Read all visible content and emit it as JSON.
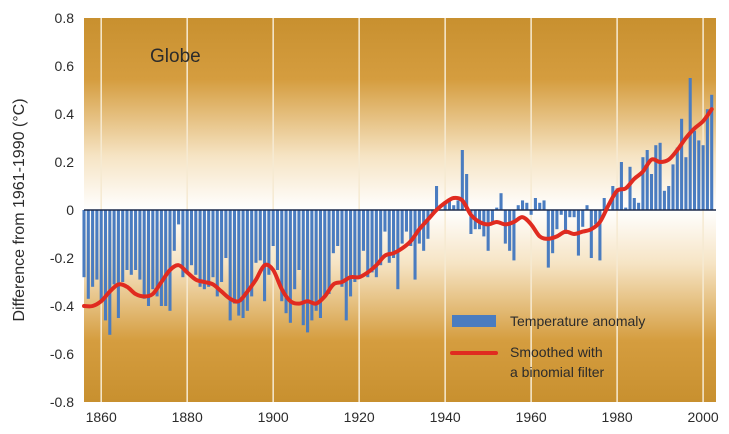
{
  "chart_data": {
    "type": "bar",
    "panel_label": "Globe",
    "ylabel": "Difference from 1961-1990 (°C)",
    "xlabel": "",
    "xlim": [
      1856,
      2003
    ],
    "ylim": [
      -0.8,
      0.8
    ],
    "xticks": [
      1860,
      1880,
      1900,
      1920,
      1940,
      1960,
      1980,
      2000
    ],
    "yticks": [
      0.8,
      0.6,
      0.4,
      0.2,
      0,
      -0.2,
      -0.4,
      -0.6,
      -0.8
    ],
    "ytick_labels": [
      "0.8",
      "0.6",
      "0.4",
      "0.2",
      "0",
      "-0.2",
      "-0.4",
      "-0.6",
      "-0.8"
    ],
    "grid": "vertical lines at x ticks",
    "legend_position": "bottom-right",
    "colors": {
      "bars": "#4a7cc0",
      "smoothed": "#e02b20",
      "bg_warm": "#c98f2e",
      "bg_center": "#ffffff",
      "grid": "#f6ead2"
    },
    "series": [
      {
        "name": "Temperature anomaly",
        "kind": "bar",
        "x": [
          1856,
          1857,
          1858,
          1859,
          1860,
          1861,
          1862,
          1863,
          1864,
          1865,
          1866,
          1867,
          1868,
          1869,
          1870,
          1871,
          1872,
          1873,
          1874,
          1875,
          1876,
          1877,
          1878,
          1879,
          1880,
          1881,
          1882,
          1883,
          1884,
          1885,
          1886,
          1887,
          1888,
          1889,
          1890,
          1891,
          1892,
          1893,
          1894,
          1895,
          1896,
          1897,
          1898,
          1899,
          1900,
          1901,
          1902,
          1903,
          1904,
          1905,
          1906,
          1907,
          1908,
          1909,
          1910,
          1911,
          1912,
          1913,
          1914,
          1915,
          1916,
          1917,
          1918,
          1919,
          1920,
          1921,
          1922,
          1923,
          1924,
          1925,
          1926,
          1927,
          1928,
          1929,
          1930,
          1931,
          1932,
          1933,
          1934,
          1935,
          1936,
          1937,
          1938,
          1939,
          1940,
          1941,
          1942,
          1943,
          1944,
          1945,
          1946,
          1947,
          1948,
          1949,
          1950,
          1951,
          1952,
          1953,
          1954,
          1955,
          1956,
          1957,
          1958,
          1959,
          1960,
          1961,
          1962,
          1963,
          1964,
          1965,
          1966,
          1967,
          1968,
          1969,
          1970,
          1971,
          1972,
          1973,
          1974,
          1975,
          1976,
          1977,
          1978,
          1979,
          1980,
          1981,
          1982,
          1983,
          1984,
          1985,
          1986,
          1987,
          1988,
          1989,
          1990,
          1991,
          1992,
          1993,
          1994,
          1995,
          1996,
          1997,
          1998,
          1999,
          2000,
          2001,
          2002
        ],
        "values": [
          -0.28,
          -0.37,
          -0.32,
          -0.29,
          -0.38,
          -0.46,
          -0.52,
          -0.31,
          -0.45,
          -0.3,
          -0.25,
          -0.27,
          -0.25,
          -0.29,
          -0.37,
          -0.4,
          -0.33,
          -0.36,
          -0.4,
          -0.4,
          -0.42,
          -0.17,
          -0.06,
          -0.28,
          -0.26,
          -0.23,
          -0.27,
          -0.32,
          -0.33,
          -0.32,
          -0.28,
          -0.36,
          -0.3,
          -0.2,
          -0.46,
          -0.39,
          -0.44,
          -0.45,
          -0.42,
          -0.36,
          -0.22,
          -0.21,
          -0.38,
          -0.27,
          -0.15,
          -0.25,
          -0.38,
          -0.43,
          -0.47,
          -0.33,
          -0.25,
          -0.48,
          -0.51,
          -0.46,
          -0.42,
          -0.45,
          -0.36,
          -0.35,
          -0.18,
          -0.15,
          -0.32,
          -0.46,
          -0.36,
          -0.3,
          -0.28,
          -0.17,
          -0.28,
          -0.26,
          -0.28,
          -0.23,
          -0.09,
          -0.22,
          -0.2,
          -0.33,
          -0.14,
          -0.09,
          -0.15,
          -0.29,
          -0.14,
          -0.17,
          -0.12,
          -0.02,
          0.1,
          -0.0,
          0.03,
          0.04,
          0.02,
          0.04,
          0.25,
          0.15,
          -0.1,
          -0.08,
          -0.08,
          -0.11,
          -0.17,
          -0.05,
          0.01,
          0.07,
          -0.14,
          -0.17,
          -0.21,
          0.02,
          0.04,
          0.03,
          -0.02,
          0.05,
          0.03,
          0.04,
          -0.24,
          -0.18,
          -0.08,
          -0.02,
          -0.1,
          -0.03,
          -0.03,
          -0.19,
          -0.07,
          0.02,
          -0.2,
          -0.06,
          -0.21,
          0.05,
          0.0,
          0.1,
          0.09,
          0.2,
          0.01,
          0.18,
          0.05,
          0.03,
          0.22,
          0.25,
          0.15,
          0.27,
          0.28,
          0.08,
          0.1,
          0.19,
          0.26,
          0.38,
          0.22,
          0.55,
          0.33,
          0.29,
          0.27,
          0.42,
          0.48
        ]
      },
      {
        "name": "Smoothed with a binomial filter",
        "name_lines": [
          "Smoothed with",
          "a binomial filter"
        ],
        "kind": "line",
        "x": [
          1856,
          1858,
          1860,
          1862,
          1864,
          1866,
          1868,
          1870,
          1872,
          1874,
          1876,
          1878,
          1880,
          1882,
          1884,
          1886,
          1888,
          1890,
          1892,
          1894,
          1896,
          1898,
          1900,
          1902,
          1904,
          1906,
          1908,
          1910,
          1912,
          1914,
          1916,
          1918,
          1920,
          1922,
          1924,
          1926,
          1928,
          1930,
          1932,
          1934,
          1936,
          1938,
          1940,
          1942,
          1944,
          1946,
          1948,
          1950,
          1952,
          1954,
          1956,
          1958,
          1960,
          1962,
          1964,
          1966,
          1968,
          1970,
          1972,
          1974,
          1976,
          1978,
          1980,
          1982,
          1984,
          1986,
          1988,
          1990,
          1992,
          1994,
          1996,
          1998,
          2000,
          2002
        ],
        "values": [
          -0.4,
          -0.4,
          -0.38,
          -0.34,
          -0.31,
          -0.32,
          -0.35,
          -0.36,
          -0.35,
          -0.3,
          -0.25,
          -0.23,
          -0.26,
          -0.29,
          -0.3,
          -0.31,
          -0.34,
          -0.37,
          -0.38,
          -0.34,
          -0.29,
          -0.23,
          -0.25,
          -0.33,
          -0.38,
          -0.39,
          -0.38,
          -0.39,
          -0.36,
          -0.31,
          -0.3,
          -0.28,
          -0.28,
          -0.26,
          -0.23,
          -0.19,
          -0.18,
          -0.16,
          -0.13,
          -0.08,
          -0.04,
          0.0,
          0.03,
          0.05,
          0.04,
          -0.02,
          -0.05,
          -0.06,
          -0.05,
          -0.06,
          -0.05,
          -0.03,
          -0.06,
          -0.11,
          -0.12,
          -0.11,
          -0.09,
          -0.1,
          -0.09,
          -0.08,
          -0.05,
          0.02,
          0.08,
          0.09,
          0.13,
          0.16,
          0.21,
          0.2,
          0.21,
          0.25,
          0.3,
          0.34,
          0.37,
          0.42
        ]
      }
    ]
  }
}
